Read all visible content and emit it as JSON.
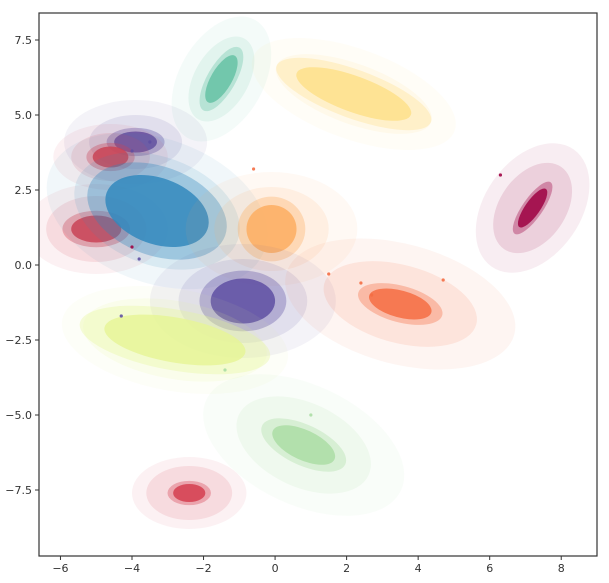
{
  "chart_data": {
    "type": "scatter",
    "title": "",
    "xlabel": "",
    "ylabel": "",
    "xlim": [
      -6.6,
      9.0
    ],
    "ylim": [
      -9.7,
      8.4
    ],
    "grid": false,
    "legend": "none",
    "x_ticks": [
      -6,
      -4,
      -2,
      0,
      2,
      4,
      6,
      8
    ],
    "x_tick_labels": [
      "−6",
      "−4",
      "−2",
      "0",
      "2",
      "4",
      "6",
      "8"
    ],
    "y_ticks": [
      7.5,
      5.0,
      2.5,
      0.0,
      -2.5,
      -5.0,
      -7.5
    ],
    "y_tick_labels": [
      "7.5",
      "5.0",
      "2.5",
      "0.0",
      "−2.5",
      "−5.0",
      "−7.5"
    ],
    "marker_style": "translucent ellipses (point + uncertainty)",
    "series": [
      {
        "color": "#5e4fa2",
        "center": [
          -3.9,
          4.1
        ],
        "rx": 0.6,
        "ry": 0.35,
        "angle": 0,
        "halo": [
          [
            1.3,
            0.9
          ],
          [
            2.0,
            1.4
          ]
        ]
      },
      {
        "color": "#66c2a5",
        "center": [
          -1.5,
          6.2
        ],
        "rx": 0.75,
        "ry": 0.35,
        "angle": 60,
        "halo": [
          [
            1.3,
            0.9
          ],
          [
            1.9,
            1.4
          ]
        ]
      },
      {
        "color": "#fee08b",
        "center": [
          2.2,
          5.7
        ],
        "rx": 1.7,
        "ry": 0.6,
        "angle": -20,
        "halo": [
          [
            2.3,
            1.0
          ],
          [
            3.0,
            1.5
          ]
        ]
      },
      {
        "color": "#d53e4f",
        "center": [
          -4.6,
          3.6
        ],
        "rx": 0.5,
        "ry": 0.35,
        "angle": 0,
        "halo": [
          [
            1.1,
            0.8
          ],
          [
            1.6,
            1.1
          ]
        ]
      },
      {
        "color": "#d53e4f",
        "center": [
          -5.0,
          1.2
        ],
        "rx": 0.7,
        "ry": 0.45,
        "angle": 0,
        "halo": [
          [
            1.4,
            1.1
          ],
          [
            2.0,
            1.5
          ]
        ]
      },
      {
        "color": "#3288bd",
        "center": [
          -3.3,
          1.8
        ],
        "rx": 1.5,
        "ry": 1.1,
        "angle": -20,
        "halo": [
          [
            2.4,
            1.8
          ],
          [
            3.2,
            2.4
          ]
        ]
      },
      {
        "color": "#fdae61",
        "center": [
          -0.1,
          1.2
        ],
        "rx": 0.7,
        "ry": 0.8,
        "angle": 0,
        "halo": [
          [
            1.6,
            1.4
          ],
          [
            2.4,
            1.9
          ]
        ]
      },
      {
        "color": "#5e4fa2",
        "center": [
          -0.9,
          -1.2
        ],
        "rx": 0.9,
        "ry": 0.75,
        "angle": 0,
        "halo": [
          [
            1.8,
            1.4
          ],
          [
            2.6,
            1.9
          ]
        ]
      },
      {
        "color": "#f46d43",
        "center": [
          3.5,
          -1.3
        ],
        "rx": 0.9,
        "ry": 0.45,
        "angle": -15,
        "halo": [
          [
            2.2,
            1.3
          ],
          [
            3.3,
            2.0
          ]
        ]
      },
      {
        "color": "#9e0142",
        "center": [
          7.2,
          1.9
        ],
        "rx": 0.65,
        "ry": 0.25,
        "angle": 55,
        "halo": [
          [
            1.4,
            1.1
          ],
          [
            2.0,
            1.6
          ]
        ]
      },
      {
        "color": "#e6f598",
        "center": [
          -2.8,
          -2.5
        ],
        "rx": 2.0,
        "ry": 0.75,
        "angle": -10,
        "halo": [
          [
            2.6,
            1.3
          ],
          [
            3.2,
            1.7
          ]
        ]
      },
      {
        "color": "#abdda4",
        "center": [
          0.8,
          -6.0
        ],
        "rx": 0.95,
        "ry": 0.5,
        "angle": -25,
        "halo": [
          [
            2.0,
            1.4
          ],
          [
            3.0,
            2.0
          ]
        ]
      },
      {
        "color": "#d53e4f",
        "center": [
          -2.4,
          -7.6
        ],
        "rx": 0.45,
        "ry": 0.3,
        "angle": 0,
        "halo": [
          [
            1.2,
            0.9
          ],
          [
            1.6,
            1.2
          ]
        ]
      }
    ],
    "points": [
      {
        "x": 6.3,
        "y": 3.0,
        "color": "#9e0142"
      },
      {
        "x": -3.5,
        "y": 4.1,
        "color": "#5e4fa2"
      },
      {
        "x": -4.0,
        "y": 3.8,
        "color": "#5e4fa2"
      },
      {
        "x": -3.8,
        "y": 0.2,
        "color": "#5e4fa2"
      },
      {
        "x": -4.0,
        "y": 0.6,
        "color": "#9e0142"
      },
      {
        "x": -4.3,
        "y": -1.7,
        "color": "#5e4fa2"
      },
      {
        "x": -0.6,
        "y": 3.2,
        "color": "#f46d43"
      },
      {
        "x": 1.5,
        "y": -0.3,
        "color": "#f46d43"
      },
      {
        "x": 2.4,
        "y": -0.6,
        "color": "#f46d43"
      },
      {
        "x": 2.7,
        "y": -1.0,
        "color": "#f46d43"
      },
      {
        "x": 4.7,
        "y": -0.5,
        "color": "#f46d43"
      },
      {
        "x": -1.4,
        "y": -3.5,
        "color": "#abdda4"
      },
      {
        "x": 1.0,
        "y": -5.0,
        "color": "#abdda4"
      }
    ]
  }
}
